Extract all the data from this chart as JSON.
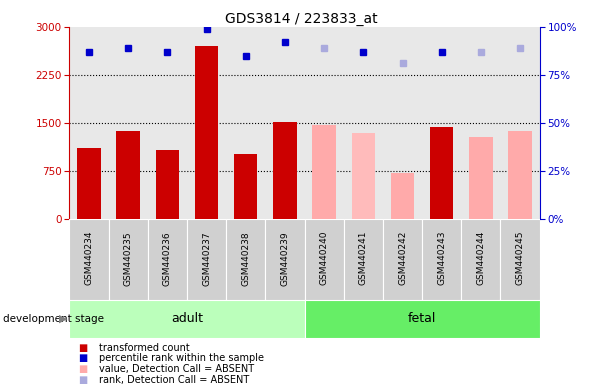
{
  "title": "GDS3814 / 223833_at",
  "samples": [
    "GSM440234",
    "GSM440235",
    "GSM440236",
    "GSM440237",
    "GSM440238",
    "GSM440239",
    "GSM440240",
    "GSM440241",
    "GSM440242",
    "GSM440243",
    "GSM440244",
    "GSM440245"
  ],
  "bar_values": [
    1100,
    1380,
    1080,
    2700,
    1020,
    1520,
    1460,
    1340,
    710,
    1430,
    1280,
    1380
  ],
  "bar_colors": [
    "#cc0000",
    "#cc0000",
    "#cc0000",
    "#cc0000",
    "#cc0000",
    "#cc0000",
    "#ffaaaa",
    "#ffbbbb",
    "#ffaaaa",
    "#cc0000",
    "#ffaaaa",
    "#ffaaaa"
  ],
  "rank_values": [
    87,
    89,
    87,
    99,
    85,
    92,
    89,
    87,
    81,
    87,
    87,
    89
  ],
  "rank_colors": [
    "#0000cc",
    "#0000cc",
    "#0000cc",
    "#0000cc",
    "#0000cc",
    "#0000cc",
    "#aaaadd",
    "#0000cc",
    "#aaaadd",
    "#0000cc",
    "#aaaadd",
    "#aaaadd"
  ],
  "rank_absent_idx": [
    6,
    8,
    10,
    11
  ],
  "rank_present_idx": [
    0,
    1,
    2,
    3,
    4,
    5,
    7,
    9
  ],
  "groups": [
    {
      "label": "adult",
      "start": 0,
      "end": 6,
      "color": "#bbffbb"
    },
    {
      "label": "fetal",
      "start": 6,
      "end": 12,
      "color": "#66ee66"
    }
  ],
  "ylim_left": [
    0,
    3000
  ],
  "ylim_right": [
    0,
    100
  ],
  "yticks_left": [
    0,
    750,
    1500,
    2250,
    3000
  ],
  "yticks_right": [
    0,
    25,
    50,
    75,
    100
  ],
  "left_axis_color": "#cc0000",
  "right_axis_color": "#0000cc",
  "legend_items": [
    {
      "label": "transformed count",
      "color": "#cc0000"
    },
    {
      "label": "percentile rank within the sample",
      "color": "#0000cc"
    },
    {
      "label": "value, Detection Call = ABSENT",
      "color": "#ffaaaa"
    },
    {
      "label": "rank, Detection Call = ABSENT",
      "color": "#aaaadd"
    }
  ],
  "group_label": "development stage",
  "plot_bg": "#e8e8e8",
  "tick_box_bg": "#d0d0d0"
}
